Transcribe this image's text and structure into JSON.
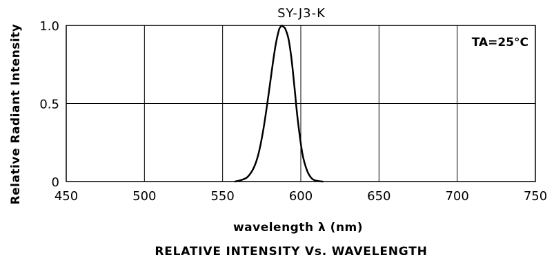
{
  "chart_data": {
    "type": "line",
    "title": "SY-J3-K",
    "xlabel": "wavelength  λ (nm)",
    "ylabel": "Relative  Radiant  Intensity",
    "caption": "RELATIVE  INTENSITY  Vs.  WAVELENGTH",
    "annotation": "TA=25°C",
    "xlim": [
      450,
      750
    ],
    "ylim": [
      0,
      1.0
    ],
    "x_ticks": [
      450,
      500,
      550,
      600,
      650,
      700,
      750
    ],
    "x_tick_labels": [
      "450",
      "500",
      "550",
      "600",
      "650",
      "700",
      "750"
    ],
    "y_ticks": [
      0,
      0.5,
      1.0
    ],
    "y_tick_labels": [
      "0",
      "0.5",
      "1.0"
    ],
    "grid": true,
    "series": [
      {
        "x": [
          558,
          562,
          566,
          570,
          573,
          576,
          579,
          582,
          584,
          586,
          587,
          588,
          589,
          590,
          592,
          594,
          596,
          598,
          601,
          604,
          607,
          610,
          614
        ],
        "values": [
          0.0,
          0.01,
          0.03,
          0.09,
          0.18,
          0.33,
          0.53,
          0.75,
          0.88,
          0.97,
          0.99,
          1.0,
          0.99,
          0.98,
          0.92,
          0.79,
          0.6,
          0.4,
          0.18,
          0.07,
          0.02,
          0.005,
          0.0
        ]
      }
    ],
    "line_color": "#000000"
  }
}
